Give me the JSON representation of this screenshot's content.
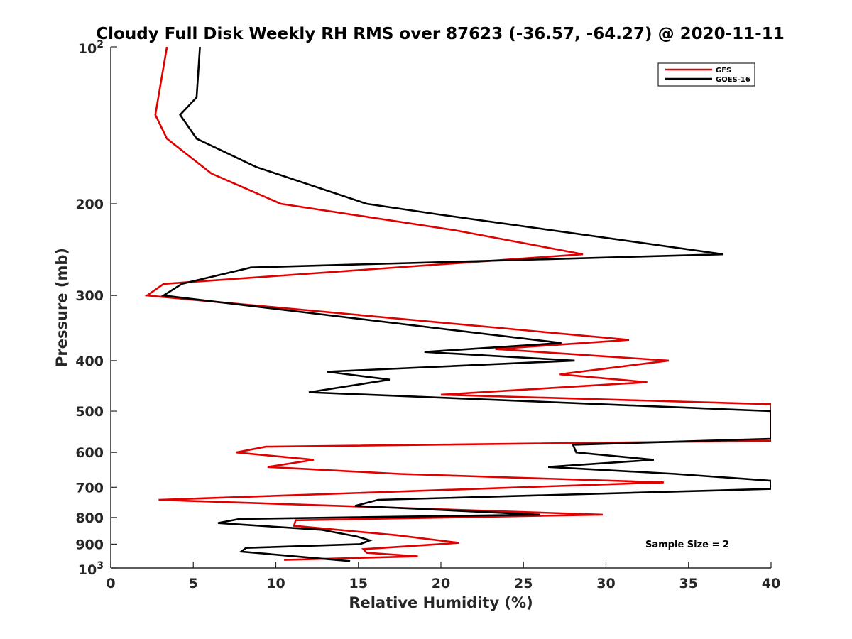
{
  "chart_data": {
    "type": "line",
    "title": "Cloudy Full Disk Weekly RH RMS over 87623 (-36.57, -64.27) @ 2020-11-11",
    "xlabel": "Relative Humidity (%)",
    "ylabel": "Pressure (mb)",
    "xlim": [
      0,
      40
    ],
    "ylim": [
      100,
      1000
    ],
    "y_scale": "log",
    "y_reversed": true,
    "grid": false,
    "legend_position": "top-right",
    "x_ticks": [
      "0",
      "5",
      "10",
      "15",
      "20",
      "25",
      "30",
      "35",
      "40"
    ],
    "y_ticks": [
      {
        "value": 100,
        "base": "10",
        "exp": "2"
      },
      {
        "value": 200,
        "label": "200"
      },
      {
        "value": 300,
        "label": "300"
      },
      {
        "value": 400,
        "label": "400"
      },
      {
        "value": 500,
        "label": "500"
      },
      {
        "value": 600,
        "label": "600"
      },
      {
        "value": 700,
        "label": "700"
      },
      {
        "value": 800,
        "label": "800"
      },
      {
        "value": 900,
        "label": "900"
      },
      {
        "value": 1000,
        "base": "10",
        "exp": "3"
      }
    ],
    "series": [
      {
        "name": "GFS",
        "color": "#e00000",
        "points": [
          [
            3.4,
            100
          ],
          [
            2.7,
            135
          ],
          [
            3.4,
            150
          ],
          [
            6.1,
            175
          ],
          [
            10.3,
            200
          ],
          [
            20.9,
            225
          ],
          [
            28.6,
            250
          ],
          [
            3.2,
            285
          ],
          [
            2.2,
            300
          ],
          [
            31.4,
            365
          ],
          [
            23.3,
            380
          ],
          [
            33.8,
            400
          ],
          [
            27.2,
            425
          ],
          [
            32.5,
            440
          ],
          [
            20.0,
            465
          ],
          [
            40.0,
            485
          ],
          [
            40.0,
            570
          ],
          [
            9.4,
            585
          ],
          [
            7.6,
            600
          ],
          [
            12.3,
            620
          ],
          [
            9.5,
            640
          ],
          [
            17.5,
            660
          ],
          [
            33.5,
            685
          ],
          [
            2.9,
            740
          ],
          [
            29.8,
            790
          ],
          [
            11.2,
            810
          ],
          [
            11.1,
            830
          ],
          [
            17.3,
            865
          ],
          [
            21.1,
            895
          ],
          [
            15.3,
            920
          ],
          [
            15.5,
            935
          ],
          [
            18.6,
            950
          ],
          [
            10.5,
            965
          ]
        ]
      },
      {
        "name": "GOES-16",
        "color": "#000000",
        "points": [
          [
            5.4,
            100
          ],
          [
            5.2,
            125
          ],
          [
            4.2,
            135
          ],
          [
            5.2,
            150
          ],
          [
            8.8,
            170
          ],
          [
            15.5,
            200
          ],
          [
            20.0,
            210
          ],
          [
            37.1,
            250
          ],
          [
            8.5,
            265
          ],
          [
            4.3,
            285
          ],
          [
            3.2,
            300
          ],
          [
            27.3,
            370
          ],
          [
            19.0,
            385
          ],
          [
            28.1,
            400
          ],
          [
            13.1,
            420
          ],
          [
            16.9,
            435
          ],
          [
            12.0,
            460
          ],
          [
            40.0,
            500
          ],
          [
            40.0,
            565
          ],
          [
            28.0,
            580
          ],
          [
            28.2,
            600
          ],
          [
            32.9,
            620
          ],
          [
            26.5,
            640
          ],
          [
            34.2,
            660
          ],
          [
            40.0,
            680
          ],
          [
            40.0,
            705
          ],
          [
            16.2,
            740
          ],
          [
            14.8,
            760
          ],
          [
            26.0,
            790
          ],
          [
            7.8,
            805
          ],
          [
            6.5,
            820
          ],
          [
            12.8,
            845
          ],
          [
            14.9,
            870
          ],
          [
            15.7,
            885
          ],
          [
            15.1,
            900
          ],
          [
            8.2,
            915
          ],
          [
            7.9,
            930
          ],
          [
            14.5,
            970
          ]
        ]
      }
    ],
    "annotation": "Sample Size = 2"
  }
}
